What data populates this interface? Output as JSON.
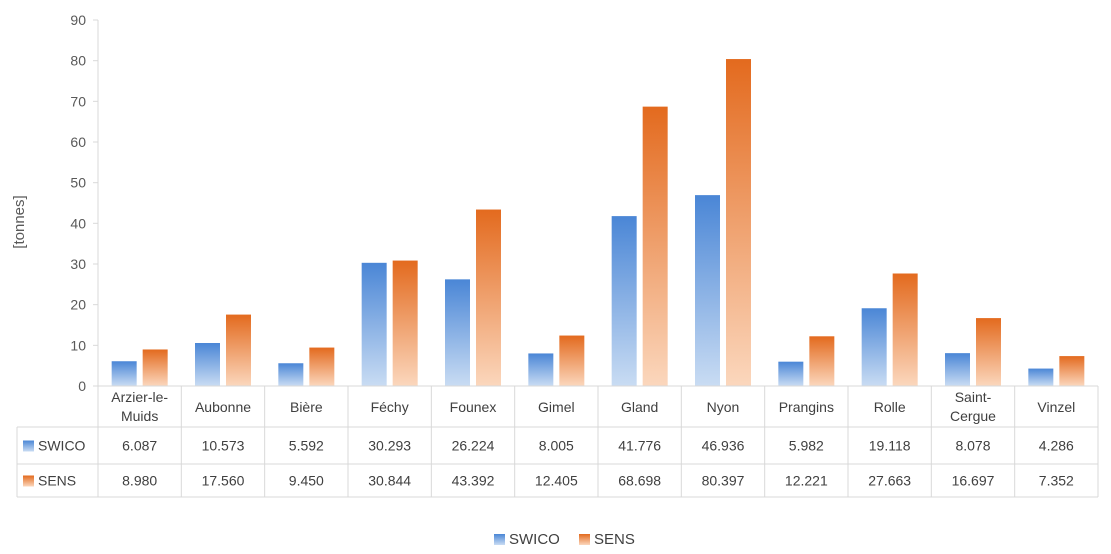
{
  "chart_data": {
    "type": "bar",
    "ylabel": "[tonnes]",
    "ylim": [
      0,
      90
    ],
    "yticks": [
      0,
      10,
      20,
      30,
      40,
      50,
      60,
      70,
      80,
      90
    ],
    "categories": [
      [
        "Arzier-le-",
        "Muids"
      ],
      [
        "Aubonne"
      ],
      [
        "Bière"
      ],
      [
        "Féchy"
      ],
      [
        "Founex"
      ],
      [
        "Gimel"
      ],
      [
        "Gland"
      ],
      [
        "Nyon"
      ],
      [
        "Prangins"
      ],
      [
        "Rolle"
      ],
      [
        "Saint-",
        "Cergue"
      ],
      [
        "Vinzel"
      ]
    ],
    "series": [
      {
        "name": "SWICO",
        "color_top": "#4A86D6",
        "color_bottom": "#C9DCF3",
        "values": [
          6.087,
          10.573,
          5.592,
          30.293,
          26.224,
          8.005,
          41.776,
          46.936,
          5.982,
          19.118,
          8.078,
          4.286
        ],
        "labels": [
          "6.087",
          "10.573",
          "5.592",
          "30.293",
          "26.224",
          "8.005",
          "41.776",
          "46.936",
          "5.982",
          "19.118",
          "8.078",
          "4.286"
        ]
      },
      {
        "name": "SENS",
        "color_top": "#E36A1E",
        "color_bottom": "#FBD7BD",
        "values": [
          8.98,
          17.56,
          9.45,
          30.844,
          43.392,
          12.405,
          68.698,
          80.397,
          12.221,
          27.663,
          16.697,
          7.352
        ],
        "labels": [
          "8.980",
          "17.560",
          "9.450",
          "30.844",
          "43.392",
          "12.405",
          "68.698",
          "80.397",
          "12.221",
          "27.663",
          "16.697",
          "7.352"
        ]
      }
    ],
    "data_table": true,
    "grid": false,
    "legend_position": "bottom"
  }
}
